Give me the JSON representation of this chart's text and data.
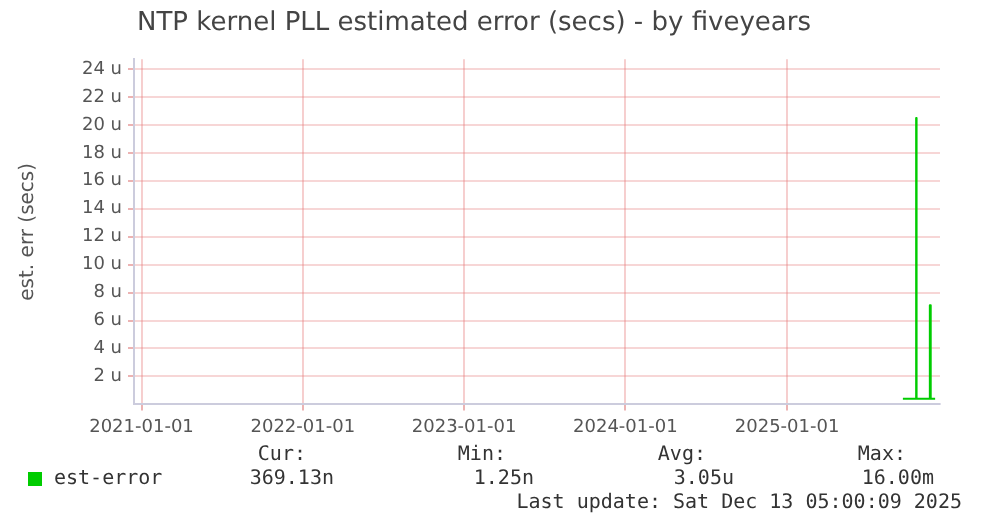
{
  "chart_data": {
    "type": "step",
    "title": "NTP kernel PLL estimated error (secs) - by fiveyears",
    "ylabel": "est. err (secs)",
    "x": [
      "2025-09-20",
      "2025-10-20",
      "2025-10-21",
      "2025-10-24",
      "2025-11-20",
      "2025-11-22",
      "2025-11-26",
      "2025-12-02"
    ],
    "series": [
      {
        "name": "est-error",
        "color": "#00cc00",
        "values": [
          0.4,
          0.4,
          20.5,
          0.4,
          0.4,
          7.1,
          0.4,
          0.4
        ]
      }
    ],
    "xlim": [
      "2020-12-15",
      "2025-12-13"
    ],
    "xticks": [
      "2021-01-01",
      "2022-01-01",
      "2023-01-01",
      "2024-01-01",
      "2025-01-01"
    ],
    "ylim": [
      0,
      24.7
    ],
    "yticks": [
      {
        "value": 2,
        "label": "2 u"
      },
      {
        "value": 4,
        "label": "4 u"
      },
      {
        "value": 6,
        "label": "6 u"
      },
      {
        "value": 8,
        "label": "8 u"
      },
      {
        "value": 10,
        "label": "10 u"
      },
      {
        "value": 12,
        "label": "12 u"
      },
      {
        "value": 14,
        "label": "14 u"
      },
      {
        "value": 16,
        "label": "16 u"
      },
      {
        "value": 18,
        "label": "18 u"
      },
      {
        "value": 20,
        "label": "20 u"
      },
      {
        "value": 22,
        "label": "22 u"
      },
      {
        "value": 24,
        "label": "24 u"
      }
    ],
    "grid": true,
    "legend": "bottom",
    "annotations": [
      "Cur:",
      "369.13n",
      "Min:",
      "1.25n",
      "Avg:",
      "3.05u",
      "Max:",
      "16.00m",
      "Last update: Sat Dec 13 05:00:09 2025"
    ]
  }
}
